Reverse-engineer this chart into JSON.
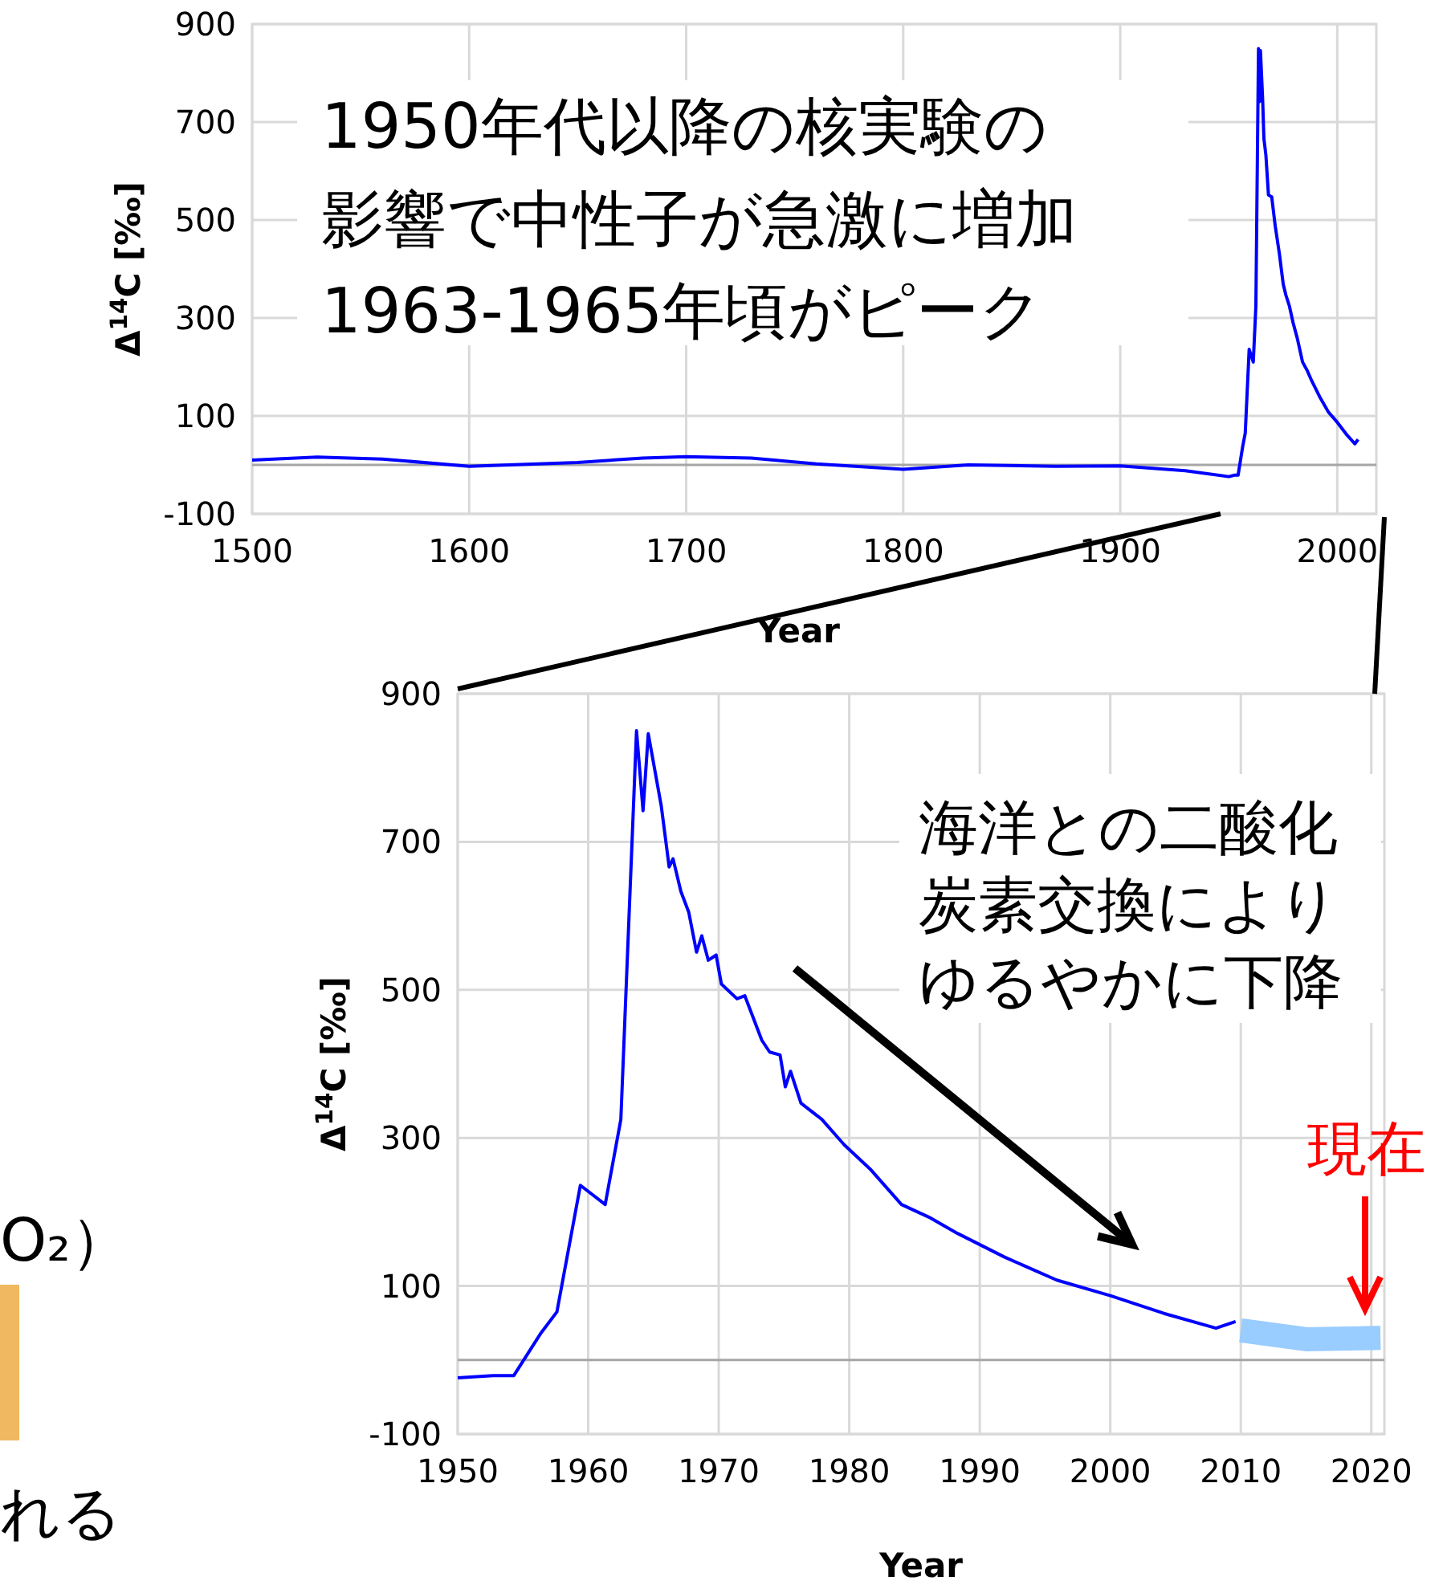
{
  "chart_data": [
    {
      "type": "line",
      "xlabel": "Year",
      "ylabel": "Δ$^{14}$C [‰]",
      "xlim": [
        1500,
        2018
      ],
      "ylim": [
        -100,
        900
      ],
      "xticks": [
        1500,
        1600,
        1700,
        1800,
        1900,
        2000
      ],
      "yticks": [
        -100,
        100,
        300,
        500,
        700,
        900
      ],
      "grid": true,
      "marker": "none",
      "line_style": "solid",
      "ref_lines": [
        {
          "axis": "y",
          "value": 0,
          "color": "#a6a6a6"
        }
      ],
      "series": [
        {
          "color": "#0000ff",
          "x": [
            1500,
            1530,
            1560,
            1600,
            1650,
            1680,
            1700,
            1730,
            1760,
            1800,
            1830,
            1870,
            1900,
            1930,
            1950,
            1952.7,
            1954.3,
            1956.4,
            1957.6,
            1959.4,
            1961.3,
            1962.5,
            1963.7,
            1964.2,
            1964.6,
            1965.6,
            1966.2,
            1967.1,
            1968.3,
            1969.8,
            1971.4,
            1973.3,
            1975.1,
            1976.3,
            1977.9,
            1979.6,
            1981.6,
            1984,
            1986.1,
            1988.3,
            1991.9,
            1995.9,
            2000,
            2004.1,
            2008.1,
            2009.6
          ],
          "values": [
            10,
            16,
            12,
            -3,
            5,
            14,
            17,
            14,
            2,
            -9,
            0,
            -3,
            -2,
            -12,
            -24,
            -21,
            -21,
            37,
            65,
            236,
            210,
            325,
            850,
            742,
            846,
            748,
            666,
            633,
            551,
            547,
            488,
            432,
            369,
            347,
            325,
            291,
            258,
            210,
            193,
            171,
            139,
            108,
            87,
            63,
            43,
            52
          ]
        }
      ],
      "annotations": [
        "1950年代以降の核実験の",
        "影響で中性子が急激に増加",
        "1963-1965年頃がピーク"
      ]
    },
    {
      "type": "line",
      "xlabel": "Year",
      "ylabel": "Δ$^{14}$C [‰]",
      "xlim": [
        1950,
        2021
      ],
      "ylim": [
        -100,
        900
      ],
      "xticks": [
        1950,
        1960,
        1970,
        1980,
        1990,
        2000,
        2010,
        2020
      ],
      "yticks": [
        -100,
        100,
        300,
        500,
        700,
        900
      ],
      "grid": true,
      "marker": "none",
      "line_style": "solid",
      "ref_lines": [
        {
          "axis": "y",
          "value": 0,
          "color": "#a6a6a6"
        }
      ],
      "series": [
        {
          "color": "#0000ff",
          "x": [
            1950,
            1952.7,
            1954.3,
            1956.4,
            1957.6,
            1959.4,
            1961.3,
            1962.5,
            1963.7,
            1964.2,
            1964.6,
            1965.6,
            1966.2,
            1966.5,
            1967.1,
            1967.7,
            1968.3,
            1968.7,
            1969.2,
            1969.8,
            1970.2,
            1971.4,
            1972,
            1973.3,
            1973.9,
            1974.7,
            1975.1,
            1975.5,
            1976.3,
            1977.9,
            1979.6,
            1981.6,
            1984,
            1986.1,
            1988.3,
            1991.9,
            1995.9,
            2000,
            2004.1,
            2008.1,
            2009.6
          ],
          "values": [
            -24,
            -21,
            -21,
            37,
            65,
            236,
            210,
            325,
            850,
            742,
            846,
            748,
            666,
            677,
            633,
            605,
            551,
            573,
            540,
            547,
            508,
            488,
            492,
            432,
            416,
            412,
            369,
            390,
            347,
            325,
            291,
            258,
            210,
            193,
            171,
            139,
            108,
            87,
            63,
            43,
            52
          ]
        },
        {
          "color": "#99ccff",
          "x": [
            2010,
            2015,
            2020.7
          ],
          "values": [
            40,
            28,
            30
          ],
          "lower": [
            24,
            12,
            14
          ],
          "upper": [
            56,
            44,
            46
          ]
        }
      ],
      "annotations": [
        "海洋との二酸化",
        "炭素交換により",
        "ゆるやかに下降",
        "現在",
        "O₂）",
        "れる"
      ]
    }
  ]
}
